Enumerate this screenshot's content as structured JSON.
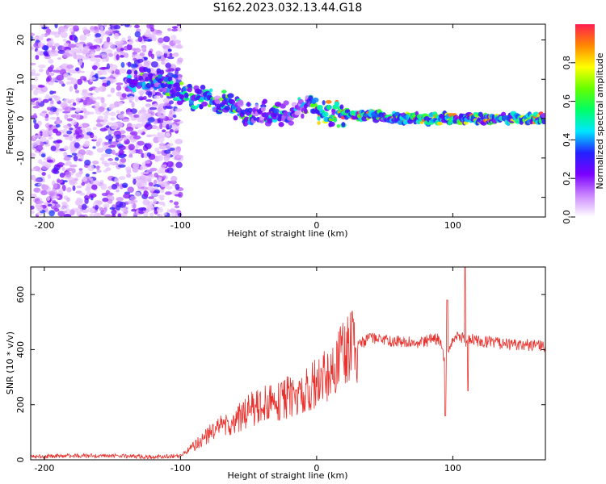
{
  "title": "S162.2023.032.13.44.G18",
  "chart_data": [
    {
      "type": "heatmap",
      "xlabel": "Height of straight line (km)",
      "ylabel": "Frequency (Hz)",
      "xlim": [
        -210,
        168
      ],
      "ylim": [
        -25,
        24
      ],
      "xticks": [
        -200,
        -100,
        0,
        100
      ],
      "yticks": [
        -20,
        -10,
        0,
        10,
        20
      ],
      "colorbar": {
        "label": "Normalized spectral amplitude",
        "ticks": [
          "0.0",
          "0.2",
          "0.4",
          "0.6",
          "0.8"
        ],
        "range": [
          0,
          1
        ],
        "colors": [
          "#ffffff",
          "#cc88ff",
          "#7a00ff",
          "#2222ff",
          "#00e6ff",
          "#00ff66",
          "#66ff00",
          "#ffff00",
          "#ff8800",
          "#ff1e50"
        ]
      },
      "ridge": {
        "x": [
          -135,
          -120,
          -110,
          -100,
          -90,
          -80,
          -70,
          -60,
          -50,
          -40,
          -30,
          -20,
          -10,
          0,
          10,
          20,
          40,
          60,
          80,
          100,
          110,
          168
        ],
        "frequency": [
          10,
          10,
          9,
          7,
          5,
          5,
          4,
          2,
          1,
          2,
          1,
          1,
          3,
          2,
          1,
          1,
          1,
          0,
          0,
          0,
          0,
          0
        ]
      }
    },
    {
      "type": "line",
      "xlabel": "Height of straight line (km)",
      "ylabel": "SNR (10 * v/v)",
      "xlim": [
        -210,
        168
      ],
      "ylim": [
        0,
        700
      ],
      "xticks": [
        -200,
        -100,
        0,
        100
      ],
      "yticks": [
        0,
        200,
        400,
        600
      ],
      "color": "#e8322e",
      "series": [
        {
          "x": [
            -210,
            -180,
            -150,
            -120,
            -100,
            -90,
            -80,
            -70,
            -60,
            -50,
            -40,
            -30,
            -20,
            -10,
            0,
            10,
            20,
            30,
            40,
            50,
            60,
            70,
            80,
            90,
            95,
            100,
            105,
            110,
            115,
            120,
            140,
            168
          ],
          "values": [
            10,
            15,
            15,
            10,
            15,
            50,
            90,
            120,
            140,
            180,
            200,
            210,
            230,
            240,
            280,
            320,
            380,
            420,
            440,
            435,
            430,
            425,
            430,
            440,
            350,
            440,
            450,
            430,
            440,
            430,
            420,
            415
          ]
        }
      ]
    }
  ]
}
